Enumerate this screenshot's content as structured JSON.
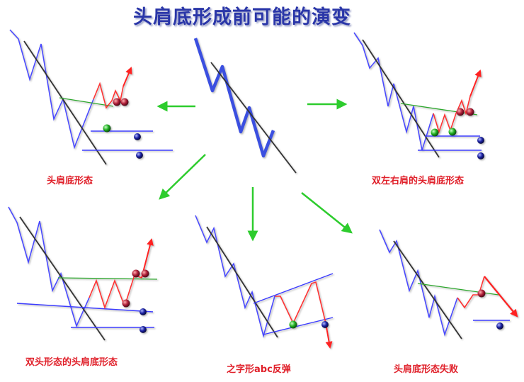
{
  "title": "头肩底形成前可能的演变",
  "captions": {
    "head_shoulders": "头肩底形态",
    "double_left_right": "双左右肩的头肩底形态",
    "double_top": "双头形态的头肩底形态",
    "zigzag_abc": "之字形abc反弹",
    "failed": "头肩底形态失败"
  },
  "colors": {
    "title": "#2a36a8",
    "price_blue": "#4a4aff",
    "price_red": "#ff3030",
    "trendline": "#333333",
    "neckline": "#2aa82a",
    "arrow_green": "#2dcc2d",
    "caption": "#e0202a"
  }
}
